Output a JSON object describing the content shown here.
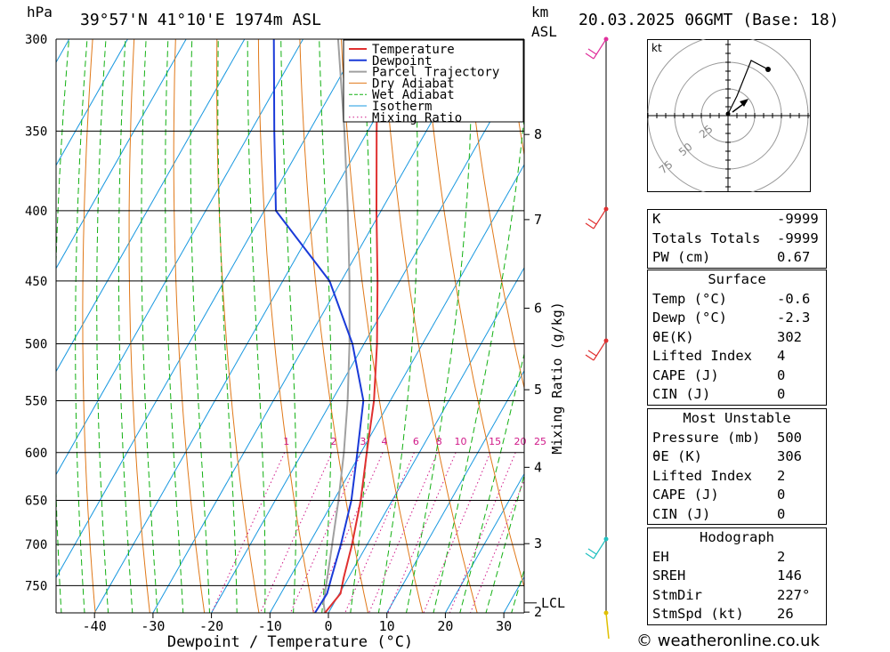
{
  "header": {
    "pressure_unit": "hPa",
    "location": "39°57'N  41°10'E  1974m  ASL",
    "height_unit_line1": "km",
    "height_unit_line2": "ASL",
    "datetime": "20.03.2025  06GMT  (Base: 18)"
  },
  "chart_data": {
    "type": "skew-t log-p",
    "xlabel": "Dewpoint / Temperature (°C)",
    "ylabel": "hPa",
    "right_axis_label": "Mixing Ratio (g/kg)",
    "temperature_ticks": [
      -40,
      -30,
      -20,
      -10,
      0,
      10,
      20,
      30
    ],
    "pressure_levels": [
      300,
      350,
      400,
      450,
      500,
      550,
      600,
      650,
      700,
      750
    ],
    "pressure_range": [
      300,
      785
    ],
    "height_ticks": [
      {
        "label": "8",
        "p": 352
      },
      {
        "label": "7",
        "p": 406
      },
      {
        "label": "6",
        "p": 471
      },
      {
        "label": "5",
        "p": 540
      },
      {
        "label": "4",
        "p": 615
      },
      {
        "label": "3",
        "p": 699
      },
      {
        "label": "2",
        "p": 784
      }
    ],
    "lcl_label": "LCL",
    "lcl_pressure": 772,
    "mixing_ratio_labels": [
      "1",
      "2",
      "3",
      "4",
      "6",
      "8",
      "10",
      "15",
      "20",
      "25"
    ],
    "legend": [
      "Temperature",
      "Dewpoint",
      "Parcel Trajectory",
      "Dry Adiabat",
      "Wet Adiabat",
      "Isotherm",
      "Mixing Ratio"
    ],
    "legend_position": "top-right",
    "colors": {
      "temperature": "#e03030",
      "dewpoint": "#1a3ad8",
      "parcel": "#a0a0a0",
      "dry_adiabat": "#e07818",
      "wet_adiabat": "#12b012",
      "isotherm": "#1898e0",
      "mixing_ratio": "#d01888"
    },
    "temperature_profile": [
      {
        "p": 785,
        "t": -0.6
      },
      {
        "p": 760,
        "t": 0.2
      },
      {
        "p": 740,
        "t": -0.8
      },
      {
        "p": 700,
        "t": -2.6
      },
      {
        "p": 650,
        "t": -5.4
      },
      {
        "p": 600,
        "t": -9.0
      },
      {
        "p": 550,
        "t": -12.8
      },
      {
        "p": 500,
        "t": -17.8
      },
      {
        "p": 450,
        "t": -23.8
      },
      {
        "p": 400,
        "t": -30.8
      },
      {
        "p": 350,
        "t": -38.5
      },
      {
        "p": 300,
        "t": -47.2
      }
    ],
    "dewpoint_profile": [
      {
        "p": 785,
        "t": -2.3
      },
      {
        "p": 760,
        "t": -2.1
      },
      {
        "p": 740,
        "t": -2.9
      },
      {
        "p": 700,
        "t": -4.5
      },
      {
        "p": 650,
        "t": -7.0
      },
      {
        "p": 600,
        "t": -10.6
      },
      {
        "p": 550,
        "t": -14.6
      },
      {
        "p": 500,
        "t": -22.0
      },
      {
        "p": 450,
        "t": -32.0
      },
      {
        "p": 400,
        "t": -48.0
      },
      {
        "p": 350,
        "t": -56.0
      },
      {
        "p": 300,
        "t": -65.0
      }
    ],
    "parcel_profile": [
      {
        "p": 785,
        "t": -0.6
      },
      {
        "p": 772,
        "t": -1.8
      },
      {
        "p": 700,
        "t": -6.0
      },
      {
        "p": 650,
        "t": -9.2
      },
      {
        "p": 600,
        "t": -12.9
      },
      {
        "p": 550,
        "t": -17.3
      },
      {
        "p": 500,
        "t": -22.5
      },
      {
        "p": 450,
        "t": -28.6
      },
      {
        "p": 400,
        "t": -35.7
      },
      {
        "p": 350,
        "t": -44.0
      },
      {
        "p": 300,
        "t": -54.0
      }
    ],
    "hodograph": {
      "unit_label": "kt",
      "ring_labels": [
        "25",
        "50",
        "75"
      ]
    }
  },
  "stats": {
    "k_label": "K",
    "k_value": "-9999",
    "tt_label": "Totals Totals",
    "tt_value": "-9999",
    "pw_label": "PW (cm)",
    "pw_value": "0.67"
  },
  "surface": {
    "title": "Surface",
    "temp_label": "Temp (°C)",
    "temp_value": "-0.6",
    "dewp_label": "Dewp (°C)",
    "dewp_value": "-2.3",
    "theta_label": "θE(K)",
    "theta_value": "302",
    "li_label": "Lifted Index",
    "li_value": "4",
    "cape_label": "CAPE (J)",
    "cape_value": "0",
    "cin_label": "CIN (J)",
    "cin_value": "0"
  },
  "most_unstable": {
    "title": "Most Unstable",
    "pressure_label": "Pressure (mb)",
    "pressure_value": "500",
    "theta_label": "θE (K)",
    "theta_value": "306",
    "li_label": "Lifted Index",
    "li_value": "2",
    "cape_label": "CAPE (J)",
    "cape_value": "0",
    "cin_label": "CIN (J)",
    "cin_value": "0"
  },
  "hodograph_table": {
    "title": "Hodograph",
    "eh_label": "EH",
    "eh_value": "2",
    "srh_label": "SREH",
    "srh_value": "146",
    "dir_label": "StmDir",
    "dir_value": "227°",
    "spd_label": "StmSpd (kt)",
    "spd_value": "26"
  },
  "footer": {
    "copyright": "© weatheronline.co.uk"
  }
}
